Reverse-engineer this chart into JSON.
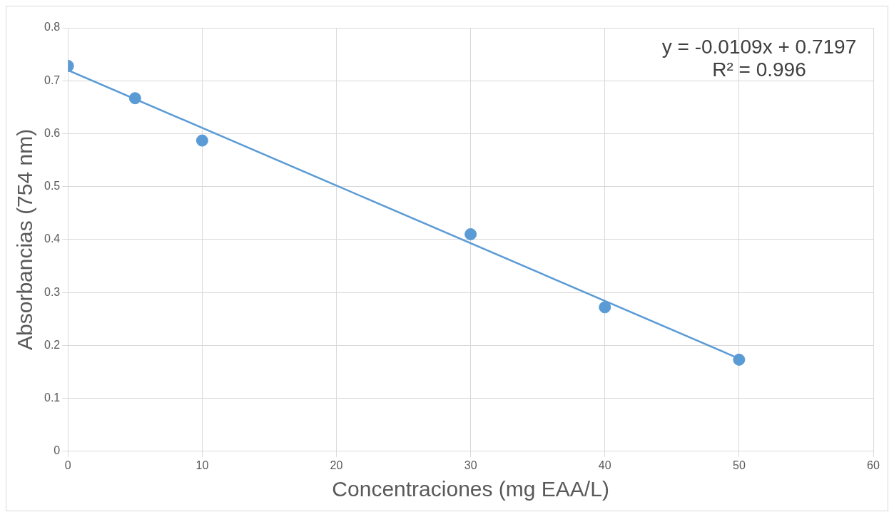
{
  "chart_data": {
    "type": "scatter",
    "xlabel": "Concentraciones (mg EAA/L)",
    "ylabel": "Absorbancias (754 nm)",
    "series": [
      {
        "type": "scatter",
        "color": "#5b9bd5",
        "marker": "circle",
        "x": [
          0,
          5,
          10,
          30,
          40,
          50
        ],
        "values": [
          0.728,
          0.667,
          0.587,
          0.41,
          0.272,
          0.173
        ]
      },
      {
        "type": "line",
        "color": "#5b9bd5",
        "marker": "none",
        "x": [
          0,
          50
        ],
        "values": [
          0.72,
          0.175
        ]
      }
    ],
    "xlim": [
      0,
      60
    ],
    "xticks": [
      0,
      10,
      20,
      30,
      40,
      50,
      60
    ],
    "ylim": [
      0,
      0.8
    ],
    "yticks": [
      0,
      0.1,
      0.2,
      0.3,
      0.4,
      0.5,
      0.6,
      0.7,
      0.8
    ],
    "grid": true,
    "legend": false,
    "line_style": "solid",
    "annotations": [
      "y = -0.0109x + 0.7197",
      "R² = 0.996"
    ]
  }
}
